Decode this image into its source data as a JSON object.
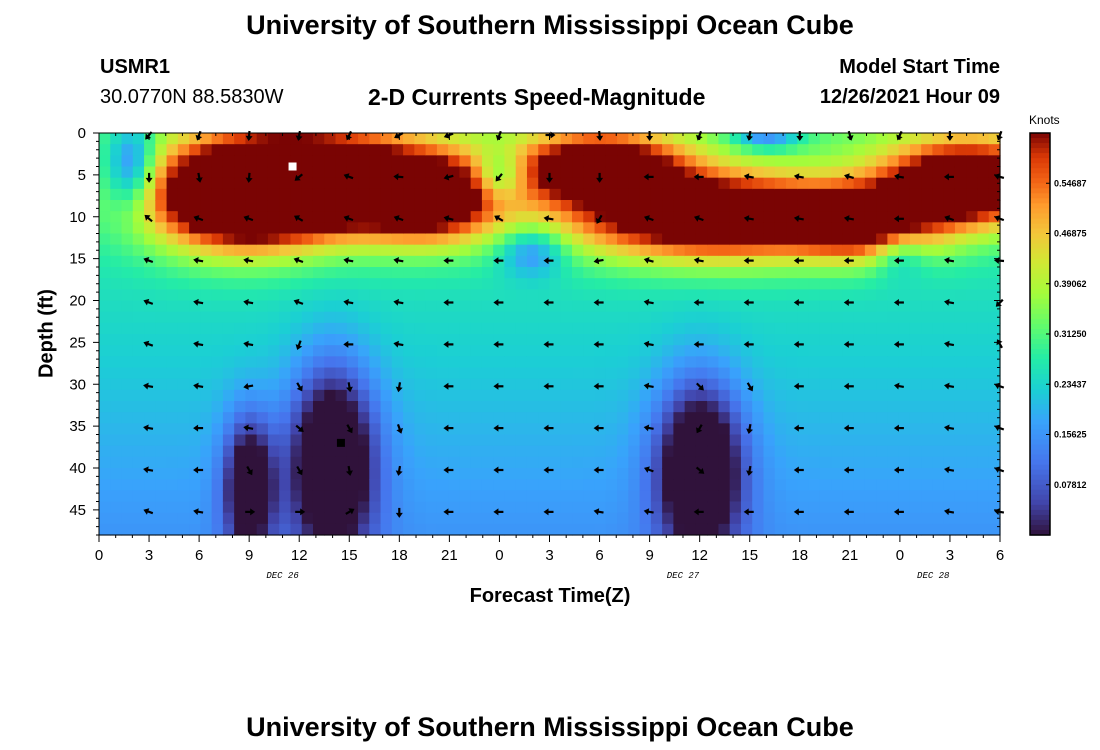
{
  "titles": {
    "main": "University of Southern Mississippi Ocean Cube",
    "station_id": "USMR1",
    "coordinates": "30.0770N  88.5830W",
    "plot_title": "2-D Currents Speed-Magnitude",
    "model_start_label": "Model Start Time",
    "model_start_value": "12/26/2021 Hour 09",
    "bottom_title": "University of Southern Mississippi Ocean Cube"
  },
  "chart_data": {
    "type": "heatmap",
    "title": "2-D Currents Speed-Magnitude",
    "xlabel": "Forecast Time(Z)",
    "ylabel": "Depth (ft)",
    "colorbar_label": "Knots",
    "xlim": [
      0,
      54
    ],
    "ylim": [
      48,
      0
    ],
    "x_ticks": [
      "0",
      "3",
      "6",
      "9",
      "12",
      "15",
      "18",
      "21",
      "0",
      "3",
      "6",
      "9",
      "12",
      "15",
      "18",
      "21",
      "0",
      "3",
      "6"
    ],
    "y_ticks": [
      "0",
      "5",
      "10",
      "15",
      "20",
      "25",
      "30",
      "35",
      "40",
      "45"
    ],
    "date_labels": [
      {
        "hour": 11,
        "text": "DEC 26"
      },
      {
        "hour": 35,
        "text": "DEC 27"
      },
      {
        "hour": 50,
        "text": "DEC 28"
      }
    ],
    "colorbar_ticks": [
      "0.07812",
      "0.15625",
      "0.23437",
      "0.31250",
      "0.39062",
      "0.46875",
      "0.54687"
    ],
    "colorbar_range": [
      0,
      0.625
    ],
    "grid": false,
    "markers": [
      {
        "hour": 11.6,
        "depth": 4,
        "color": "#ffffff"
      },
      {
        "hour": 14.5,
        "depth": 37,
        "color": "#000000"
      }
    ],
    "arrow_hours": [
      3,
      6,
      9,
      12,
      15,
      18,
      21,
      24,
      27,
      30,
      33,
      36,
      39,
      42,
      45,
      48,
      51,
      54
    ],
    "arrow_depths": [
      0,
      5,
      10,
      15,
      20,
      25,
      30,
      35,
      40,
      45
    ],
    "arrow_angles_deg": [
      [
        130,
        110,
        95,
        100,
        115,
        150,
        160,
        110,
        0,
        85,
        90,
        110,
        100,
        90,
        75,
        115,
        90,
        110
      ],
      [
        90,
        80,
        95,
        140,
        200,
        185,
        165,
        130,
        90,
        90,
        180,
        180,
        190,
        190,
        195,
        190,
        180,
        195
      ],
      [
        220,
        200,
        200,
        210,
        200,
        200,
        195,
        210,
        190,
        120,
        200,
        200,
        190,
        190,
        190,
        180,
        200,
        200
      ],
      [
        200,
        190,
        190,
        200,
        190,
        190,
        180,
        180,
        180,
        170,
        195,
        190,
        180,
        180,
        180,
        180,
        190,
        185
      ],
      [
        200,
        190,
        190,
        200,
        190,
        190,
        180,
        180,
        180,
        180,
        190,
        180,
        180,
        180,
        180,
        180,
        190,
        135
      ],
      [
        200,
        190,
        190,
        110,
        180,
        190,
        180,
        180,
        180,
        180,
        190,
        180,
        180,
        180,
        180,
        180,
        190,
        240
      ],
      [
        190,
        190,
        170,
        60,
        80,
        100,
        180,
        180,
        180,
        180,
        190,
        45,
        60,
        180,
        180,
        190,
        190,
        200
      ],
      [
        190,
        180,
        190,
        40,
        60,
        70,
        180,
        180,
        180,
        180,
        190,
        120,
        100,
        180,
        180,
        180,
        190,
        200
      ],
      [
        190,
        180,
        60,
        60,
        80,
        100,
        180,
        180,
        180,
        180,
        200,
        40,
        100,
        180,
        180,
        180,
        190,
        200
      ],
      [
        200,
        190,
        0,
        0,
        330,
        90,
        180,
        180,
        180,
        190,
        190,
        180,
        180,
        180,
        180,
        180,
        190,
        190
      ]
    ]
  }
}
